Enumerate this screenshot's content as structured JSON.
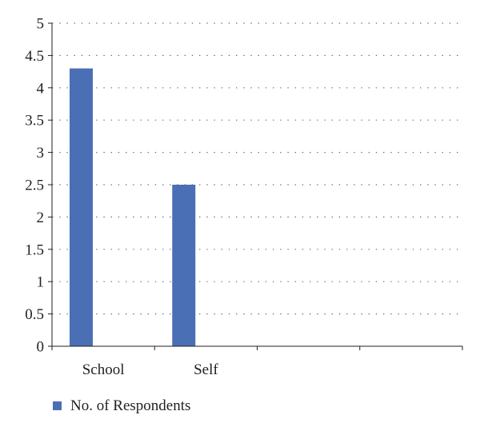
{
  "chart_data": {
    "type": "bar",
    "categories": [
      "School",
      "Self",
      "",
      ""
    ],
    "series": [
      {
        "name": "No. of Respondents",
        "values": [
          4.3,
          2.5,
          null,
          null
        ],
        "color": "#4a6fb5"
      }
    ],
    "ylim": [
      0,
      5
    ],
    "yticks": [
      "0",
      "0.5",
      "1",
      "1.5",
      "2",
      "2.5",
      "3",
      "3.5",
      "4",
      "4.5",
      "5"
    ],
    "grid": "horizontal-dotted",
    "legend_position": "bottom-left",
    "title": "",
    "xlabel": "",
    "ylabel": ""
  }
}
